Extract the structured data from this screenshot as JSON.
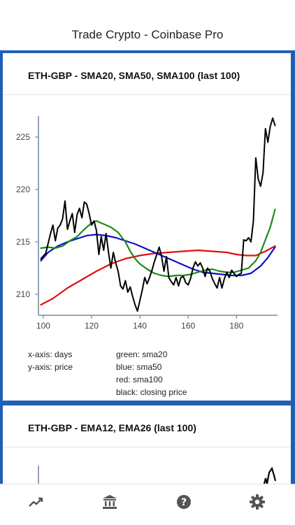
{
  "app": {
    "title": "Trade Crypto - Coinbase Pro"
  },
  "cards": [
    {
      "title": "ETH-GBP - SMA20, SMA50, SMA100 (last 100)",
      "legend_left": [
        "x-axis: days",
        "y-axis: price"
      ],
      "legend_right": [
        "green: sma20",
        "blue: sma50",
        "red: sma100",
        "black: closing price"
      ]
    },
    {
      "title": "ETH-GBP - EMA12, EMA26 (last 100)"
    }
  ],
  "chart_data": {
    "type": "line",
    "xlabel": "days",
    "ylabel": "price",
    "xlim": [
      98,
      197
    ],
    "ylim": [
      208,
      227
    ],
    "x_ticks": [
      100,
      120,
      140,
      160,
      180
    ],
    "y_ticks": [
      210,
      215,
      220,
      225
    ],
    "grid": false,
    "series": [
      {
        "name": "black: closing price",
        "color": "#000000",
        "points": [
          [
            99,
            213.4
          ],
          [
            101,
            213.9
          ],
          [
            103,
            215.8
          ],
          [
            104,
            216.6
          ],
          [
            105,
            215.1
          ],
          [
            106,
            216.3
          ],
          [
            107,
            216.6
          ],
          [
            108,
            217.2
          ],
          [
            109,
            218.9
          ],
          [
            110,
            216.2
          ],
          [
            111,
            217.0
          ],
          [
            112,
            217.7
          ],
          [
            113,
            215.9
          ],
          [
            114,
            217.6
          ],
          [
            115,
            218.2
          ],
          [
            116,
            217.3
          ],
          [
            117,
            218.8
          ],
          [
            118,
            218.6
          ],
          [
            119,
            217.7
          ],
          [
            120,
            216.6
          ],
          [
            121,
            217.0
          ],
          [
            122,
            216.1
          ],
          [
            123,
            213.8
          ],
          [
            124,
            215.5
          ],
          [
            125,
            214.2
          ],
          [
            126,
            215.8
          ],
          [
            127,
            214.0
          ],
          [
            128,
            212.5
          ],
          [
            129,
            214.0
          ],
          [
            130,
            213.0
          ],
          [
            131,
            212.2
          ],
          [
            132,
            210.8
          ],
          [
            133,
            210.5
          ],
          [
            134,
            211.3
          ],
          [
            135,
            210.2
          ],
          [
            136,
            210.7
          ],
          [
            137,
            209.8
          ],
          [
            138,
            209.0
          ],
          [
            139,
            208.4
          ],
          [
            140,
            209.4
          ],
          [
            141,
            210.4
          ],
          [
            142,
            211.6
          ],
          [
            143,
            211.0
          ],
          [
            144,
            211.6
          ],
          [
            145,
            212.3
          ],
          [
            146,
            213.1
          ],
          [
            147,
            213.8
          ],
          [
            148,
            214.5
          ],
          [
            149,
            213.6
          ],
          [
            150,
            212.2
          ],
          [
            151,
            213.6
          ],
          [
            152,
            211.6
          ],
          [
            153,
            211.2
          ],
          [
            154,
            210.9
          ],
          [
            155,
            211.6
          ],
          [
            156,
            210.8
          ],
          [
            157,
            211.6
          ],
          [
            158,
            211.7
          ],
          [
            159,
            211.1
          ],
          [
            160,
            210.9
          ],
          [
            161,
            211.5
          ],
          [
            162,
            212.5
          ],
          [
            163,
            213.1
          ],
          [
            164,
            212.7
          ],
          [
            165,
            213.0
          ],
          [
            166,
            212.5
          ],
          [
            167,
            211.7
          ],
          [
            168,
            212.5
          ],
          [
            169,
            212.2
          ],
          [
            170,
            211.5
          ],
          [
            171,
            211.0
          ],
          [
            172,
            210.6
          ],
          [
            173,
            211.6
          ],
          [
            174,
            210.6
          ],
          [
            175,
            211.5
          ],
          [
            176,
            212.1
          ],
          [
            177,
            211.6
          ],
          [
            178,
            212.3
          ],
          [
            179,
            212.0
          ],
          [
            180,
            211.7
          ],
          [
            181,
            211.9
          ],
          [
            182,
            212.0
          ],
          [
            183,
            215.2
          ],
          [
            184,
            215.1
          ],
          [
            185,
            215.4
          ],
          [
            186,
            215.0
          ],
          [
            187,
            217.0
          ],
          [
            188,
            223.0
          ],
          [
            189,
            221.0
          ],
          [
            190,
            220.3
          ],
          [
            191,
            221.6
          ],
          [
            192,
            225.8
          ],
          [
            193,
            224.5
          ],
          [
            194,
            226.0
          ],
          [
            195,
            226.8
          ],
          [
            196,
            226.1
          ]
        ]
      },
      {
        "name": "green: sma20",
        "color": "#1a8a1a",
        "points": [
          [
            99,
            214.4
          ],
          [
            102,
            214.5
          ],
          [
            105,
            214.4
          ],
          [
            108,
            214.6
          ],
          [
            111,
            215.1
          ],
          [
            114,
            215.5
          ],
          [
            117,
            216.2
          ],
          [
            120,
            216.8
          ],
          [
            122,
            217.0
          ],
          [
            125,
            216.7
          ],
          [
            128,
            216.4
          ],
          [
            131,
            215.9
          ],
          [
            134,
            215.0
          ],
          [
            136,
            214.1
          ],
          [
            138,
            213.4
          ],
          [
            140,
            212.9
          ],
          [
            143,
            212.4
          ],
          [
            146,
            212.0
          ],
          [
            149,
            211.8
          ],
          [
            152,
            211.7
          ],
          [
            155,
            211.8
          ],
          [
            158,
            211.8
          ],
          [
            161,
            211.9
          ],
          [
            164,
            212.1
          ],
          [
            167,
            212.3
          ],
          [
            170,
            212.4
          ],
          [
            173,
            212.2
          ],
          [
            176,
            212.1
          ],
          [
            179,
            212.1
          ],
          [
            182,
            212.3
          ],
          [
            185,
            212.5
          ],
          [
            188,
            213.2
          ],
          [
            190,
            214.0
          ],
          [
            192,
            215.2
          ],
          [
            194,
            216.4
          ],
          [
            196,
            218.1
          ]
        ]
      },
      {
        "name": "blue: sma50",
        "color": "#1010c8",
        "points": [
          [
            99,
            213.2
          ],
          [
            102,
            214.0
          ],
          [
            106,
            214.6
          ],
          [
            110,
            215.0
          ],
          [
            114,
            215.3
          ],
          [
            118,
            215.6
          ],
          [
            122,
            215.7
          ],
          [
            126,
            215.6
          ],
          [
            130,
            215.4
          ],
          [
            134,
            215.1
          ],
          [
            138,
            214.8
          ],
          [
            142,
            214.4
          ],
          [
            146,
            214.0
          ],
          [
            150,
            213.6
          ],
          [
            154,
            213.2
          ],
          [
            158,
            212.8
          ],
          [
            162,
            212.4
          ],
          [
            166,
            212.1
          ],
          [
            170,
            212.0
          ],
          [
            174,
            211.9
          ],
          [
            178,
            211.8
          ],
          [
            182,
            211.8
          ],
          [
            186,
            212.0
          ],
          [
            190,
            212.7
          ],
          [
            193,
            213.5
          ],
          [
            196,
            214.5
          ]
        ]
      },
      {
        "name": "red: sma100",
        "color": "#e01010",
        "points": [
          [
            99,
            209.0
          ],
          [
            104,
            209.6
          ],
          [
            110,
            210.6
          ],
          [
            116,
            211.4
          ],
          [
            122,
            212.2
          ],
          [
            128,
            212.9
          ],
          [
            134,
            213.4
          ],
          [
            140,
            213.7
          ],
          [
            146,
            213.9
          ],
          [
            152,
            214.0
          ],
          [
            158,
            214.1
          ],
          [
            164,
            214.2
          ],
          [
            170,
            214.1
          ],
          [
            176,
            214.0
          ],
          [
            180,
            213.8
          ],
          [
            184,
            213.7
          ],
          [
            188,
            213.7
          ],
          [
            192,
            214.1
          ],
          [
            196,
            214.6
          ]
        ]
      }
    ]
  }
}
